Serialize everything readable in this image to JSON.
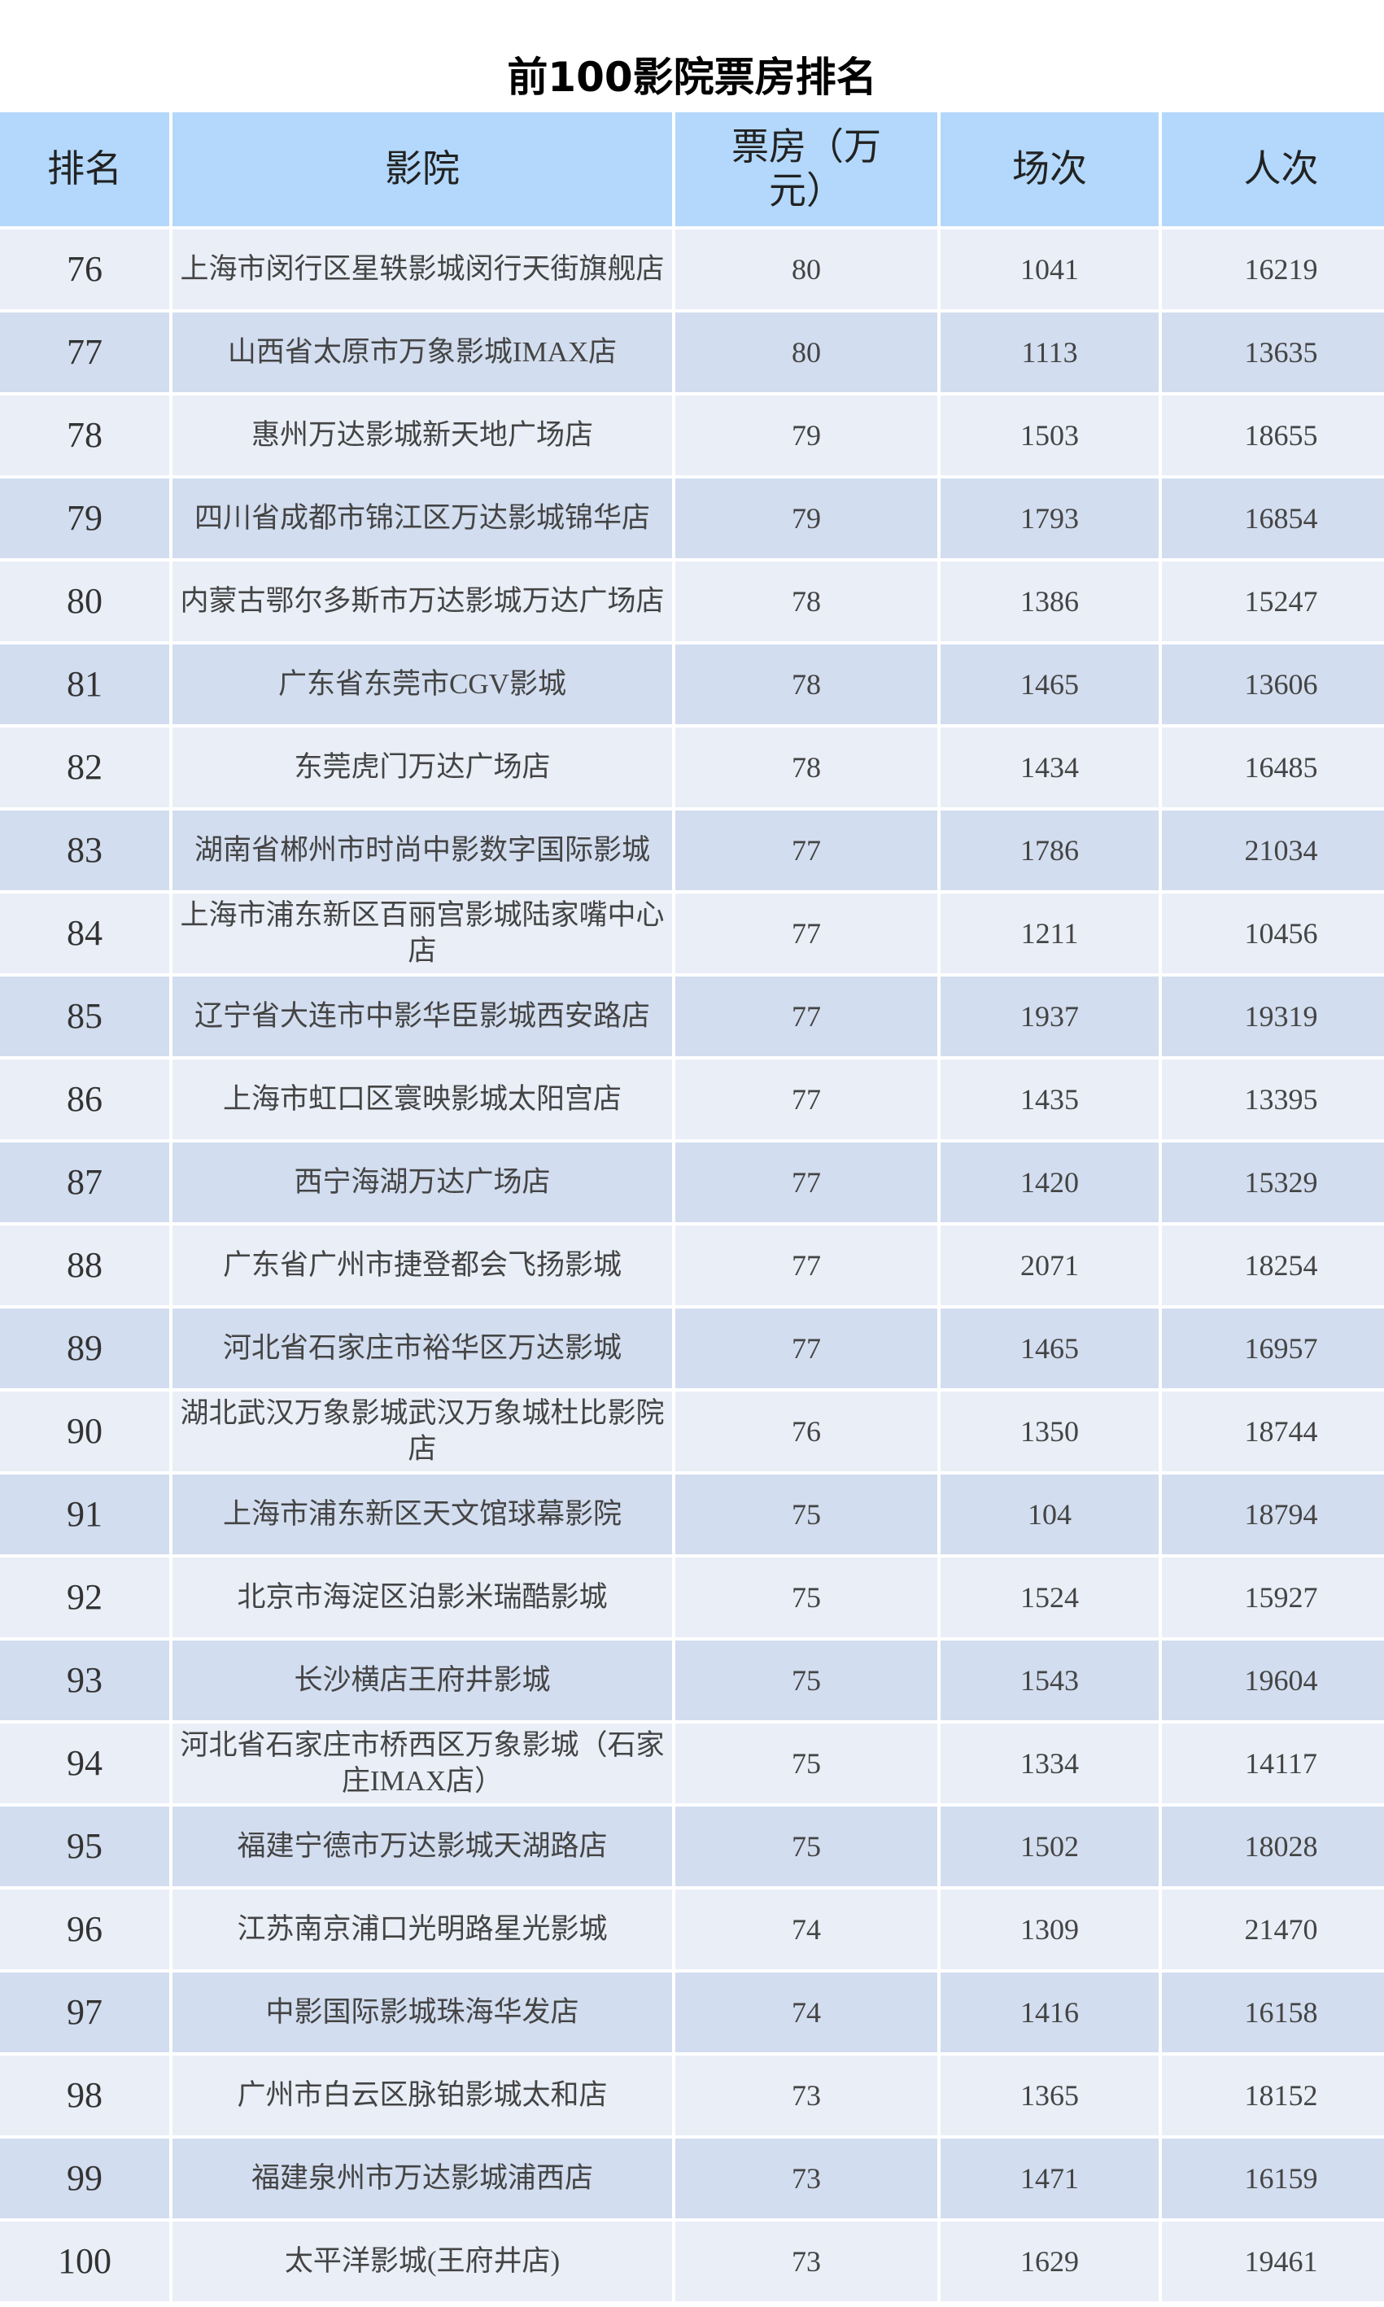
{
  "title": "前100影院票房排名",
  "columns": [
    "排名",
    "影院",
    "票房（万元）",
    "场次",
    "人次"
  ],
  "colors": {
    "header": "#b3d8fb",
    "row_light": "#e9eef7",
    "row_dark": "#d2ddef"
  },
  "rows": [
    {
      "rank": "76",
      "cinema": "上海市闵行区星轶影城闵行天街旗舰店",
      "box": "80",
      "shows": "1041",
      "admissions": "16219"
    },
    {
      "rank": "77",
      "cinema": "山西省太原市万象影城IMAX店",
      "box": "80",
      "shows": "1113",
      "admissions": "13635"
    },
    {
      "rank": "78",
      "cinema": "惠州万达影城新天地广场店",
      "box": "79",
      "shows": "1503",
      "admissions": "18655"
    },
    {
      "rank": "79",
      "cinema": "四川省成都市锦江区万达影城锦华店",
      "box": "79",
      "shows": "1793",
      "admissions": "16854"
    },
    {
      "rank": "80",
      "cinema": "内蒙古鄂尔多斯市万达影城万达广场店",
      "box": "78",
      "shows": "1386",
      "admissions": "15247"
    },
    {
      "rank": "81",
      "cinema": "广东省东莞市CGV影城",
      "box": "78",
      "shows": "1465",
      "admissions": "13606"
    },
    {
      "rank": "82",
      "cinema": "东莞虎门万达广场店",
      "box": "78",
      "shows": "1434",
      "admissions": "16485"
    },
    {
      "rank": "83",
      "cinema": "湖南省郴州市时尚中影数字国际影城",
      "box": "77",
      "shows": "1786",
      "admissions": "21034"
    },
    {
      "rank": "84",
      "cinema": "上海市浦东新区百丽宫影城陆家嘴中心店",
      "box": "77",
      "shows": "1211",
      "admissions": "10456"
    },
    {
      "rank": "85",
      "cinema": "辽宁省大连市中影华臣影城西安路店",
      "box": "77",
      "shows": "1937",
      "admissions": "19319"
    },
    {
      "rank": "86",
      "cinema": "上海市虹口区寰映影城太阳宫店",
      "box": "77",
      "shows": "1435",
      "admissions": "13395"
    },
    {
      "rank": "87",
      "cinema": "西宁海湖万达广场店",
      "box": "77",
      "shows": "1420",
      "admissions": "15329"
    },
    {
      "rank": "88",
      "cinema": "广东省广州市捷登都会飞扬影城",
      "box": "77",
      "shows": "2071",
      "admissions": "18254"
    },
    {
      "rank": "89",
      "cinema": "河北省石家庄市裕华区万达影城",
      "box": "77",
      "shows": "1465",
      "admissions": "16957"
    },
    {
      "rank": "90",
      "cinema": "湖北武汉万象影城武汉万象城杜比影院店",
      "box": "76",
      "shows": "1350",
      "admissions": "18744"
    },
    {
      "rank": "91",
      "cinema": "上海市浦东新区天文馆球幕影院",
      "box": "75",
      "shows": "104",
      "admissions": "18794"
    },
    {
      "rank": "92",
      "cinema": "北京市海淀区泊影米瑞酷影城",
      "box": "75",
      "shows": "1524",
      "admissions": "15927"
    },
    {
      "rank": "93",
      "cinema": "长沙横店王府井影城",
      "box": "75",
      "shows": "1543",
      "admissions": "19604"
    },
    {
      "rank": "94",
      "cinema": "河北省石家庄市桥西区万象影城（石家庄IMAX店）",
      "box": "75",
      "shows": "1334",
      "admissions": "14117"
    },
    {
      "rank": "95",
      "cinema": "福建宁德市万达影城天湖路店",
      "box": "75",
      "shows": "1502",
      "admissions": "18028"
    },
    {
      "rank": "96",
      "cinema": "江苏南京浦口光明路星光影城",
      "box": "74",
      "shows": "1309",
      "admissions": "21470"
    },
    {
      "rank": "97",
      "cinema": "中影国际影城珠海华发店",
      "box": "74",
      "shows": "1416",
      "admissions": "16158"
    },
    {
      "rank": "98",
      "cinema": "广州市白云区脉铂影城太和店",
      "box": "73",
      "shows": "1365",
      "admissions": "18152"
    },
    {
      "rank": "99",
      "cinema": "福建泉州市万达影城浦西店",
      "box": "73",
      "shows": "1471",
      "admissions": "16159"
    },
    {
      "rank": "100",
      "cinema": "太平洋影城(王府井店)",
      "box": "73",
      "shows": "1629",
      "admissions": "19461"
    }
  ]
}
